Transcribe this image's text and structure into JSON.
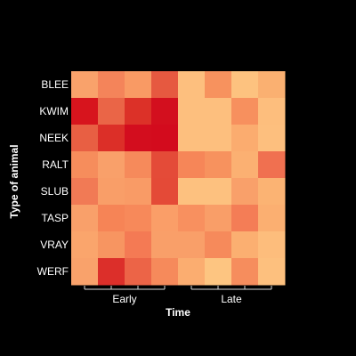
{
  "chart_data": {
    "type": "heatmap",
    "xlabel": "Time",
    "ylabel": "Type of animal",
    "rows": [
      "BLEE",
      "KWIM",
      "NEEK",
      "RALT",
      "SLUB",
      "TASP",
      "VRAY",
      "WERF"
    ],
    "column_groups": [
      {
        "label": "Early",
        "columns": 4
      },
      {
        "label": "Late",
        "columns": 4
      }
    ],
    "colors": {
      "background": "#000000",
      "text": "#ffffff",
      "bracket": "#d9d9d9"
    },
    "cells": [
      [
        "#f9a26b",
        "#f4845a",
        "#f99a64",
        "#e65940",
        "#fdbf7e",
        "#f7925e",
        "#fdc27f",
        "#fab071"
      ],
      [
        "#d7141d",
        "#ea6547",
        "#dc3128",
        "#d30f1e",
        "#fdbf7e",
        "#fdbf7e",
        "#f7905e",
        "#fdbe7d"
      ],
      [
        "#e85f43",
        "#dc2f28",
        "#d30d1e",
        "#d30b1d",
        "#fdbf7e",
        "#fdbf7e",
        "#fbac6f",
        "#fdbf7e"
      ],
      [
        "#f68d5c",
        "#f9a06a",
        "#f68a5b",
        "#e44b38",
        "#f68658",
        "#f7925e",
        "#fbb072",
        "#f07050"
      ],
      [
        "#f17a55",
        "#f99e68",
        "#f99b66",
        "#e44a37",
        "#fdc17f",
        "#fdc17f",
        "#f9a06a",
        "#fbb373"
      ],
      [
        "#f9a06a",
        "#f68456",
        "#f7895a",
        "#fa9e68",
        "#f8905f",
        "#f99e68",
        "#f47d56",
        "#fbaf71"
      ],
      [
        "#faa56c",
        "#f79561",
        "#f47a54",
        "#f99f69",
        "#f99f69",
        "#f68a5b",
        "#fbaf71",
        "#fdbd7c"
      ],
      [
        "#f9a26b",
        "#dc2f2a",
        "#ec6447",
        "#f68a5b",
        "#fbad70",
        "#fdc581",
        "#f68d5d",
        "#fdc07e"
      ]
    ]
  }
}
